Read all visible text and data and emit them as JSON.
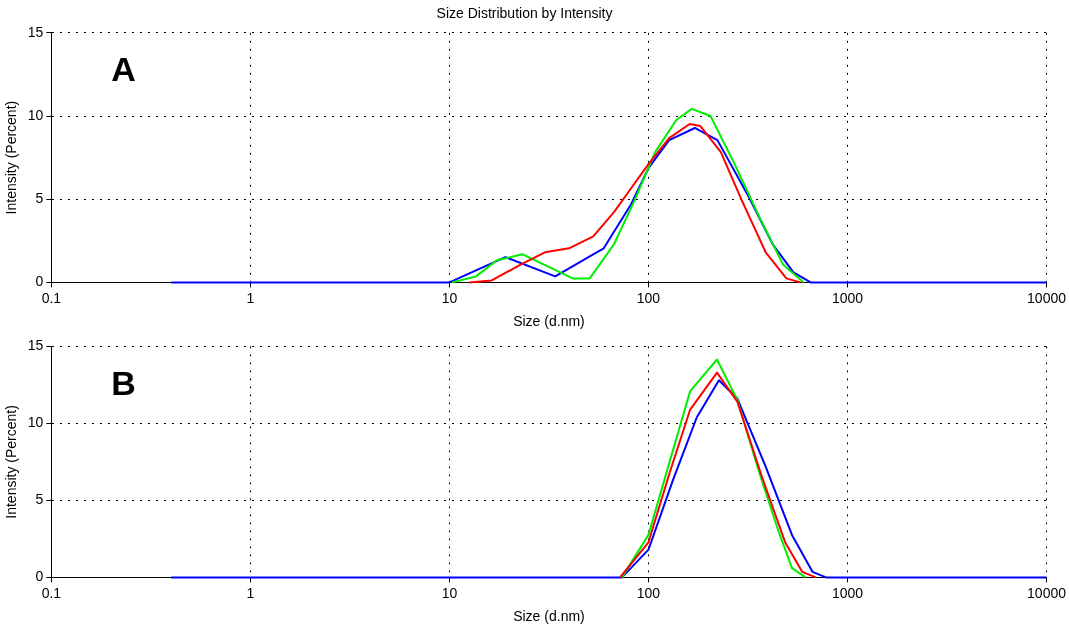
{
  "chart_data": [
    {
      "type": "line",
      "title": "Size Distribution by Intensity",
      "xlabel": "Size (d.nm)",
      "ylabel": "Intensity (Percent)",
      "annotations": [
        "A"
      ],
      "log": "x",
      "grid": true,
      "legend": false,
      "marker": "none",
      "line_style": "solid",
      "xlim": [
        0.1,
        10000
      ],
      "xticks": [
        0.1,
        1,
        10,
        100,
        1000,
        10000
      ],
      "ylim": [
        0,
        15
      ],
      "yticks": [
        0,
        5,
        10,
        15
      ],
      "series": [
        {
          "color": "#ff0000",
          "x": [
            12.6,
            16.3,
            22.9,
            30.2,
            39.9,
            52.8,
            67.1,
            81.8,
            100,
            127,
            161,
            182,
            231,
            294,
            388,
            493,
            580
          ],
          "values": [
            0,
            0.12,
            1.08,
            1.81,
            2.05,
            2.77,
            4.22,
            5.66,
            7.11,
            8.67,
            9.52,
            9.4,
            7.83,
            4.94,
            1.81,
            0.24,
            0
          ]
        },
        {
          "color": "#00ee00",
          "x": [
            10.3,
            13.6,
            17.3,
            23.3,
            32.7,
            41.6,
            50.7,
            67.1,
            85.3,
            108,
            138,
            165,
            205,
            271,
            359,
            474,
            603
          ],
          "values": [
            0,
            0.36,
            1.33,
            1.69,
            0.84,
            0.24,
            0.24,
            2.29,
            4.94,
            7.83,
            9.76,
            10.43,
            10,
            7.11,
            3.98,
            1.08,
            0
          ]
        },
        {
          "color": "#0000ff",
          "x": [
            0.4,
            10,
            19.1,
            34,
            59.6,
            81.8,
            100,
            127,
            171,
            222,
            318,
            421,
            535,
            653,
            10000
          ],
          "values": [
            0,
            0,
            1.52,
            0.36,
            2.05,
            4.7,
            6.87,
            8.55,
            9.28,
            8.55,
            5.18,
            2.29,
            0.6,
            0,
            0
          ]
        }
      ]
    },
    {
      "type": "line",
      "xlabel": "Size (d.nm)",
      "ylabel": "Intensity (Percent)",
      "annotations": [
        "B"
      ],
      "log": "x",
      "grid": true,
      "legend": false,
      "marker": "none",
      "line_style": "solid",
      "xlim": [
        0.1,
        10000
      ],
      "xticks": [
        0.1,
        1,
        10,
        100,
        1000,
        10000
      ],
      "ylim": [
        0,
        15
      ],
      "yticks": [
        0,
        5,
        10,
        15
      ],
      "series": [
        {
          "color": "#ff0000",
          "x": [
            72,
            100,
            128,
            162,
            221,
            280,
            370,
            486,
            592,
            693
          ],
          "values": [
            0,
            2.28,
            6.83,
            10.9,
            13.3,
            11.4,
            6.6,
            2.28,
            0.36,
            0
          ]
        },
        {
          "color": "#00ee00",
          "x": [
            73.6,
            100,
            128,
            162,
            221,
            280,
            355,
            450,
            526,
            616
          ],
          "values": [
            0,
            2.76,
            7.55,
            12.1,
            14.15,
            11.5,
            7.07,
            3,
            0.6,
            0
          ]
        },
        {
          "color": "#0000ff",
          "x": [
            0.4,
            73.6,
            100,
            133,
            175,
            226,
            280,
            385,
            526,
            667,
            780,
            10000
          ],
          "values": [
            0,
            0,
            1.8,
            6.35,
            10.4,
            12.8,
            11.6,
            7.3,
            2.76,
            0.36,
            0,
            0
          ]
        }
      ]
    }
  ]
}
